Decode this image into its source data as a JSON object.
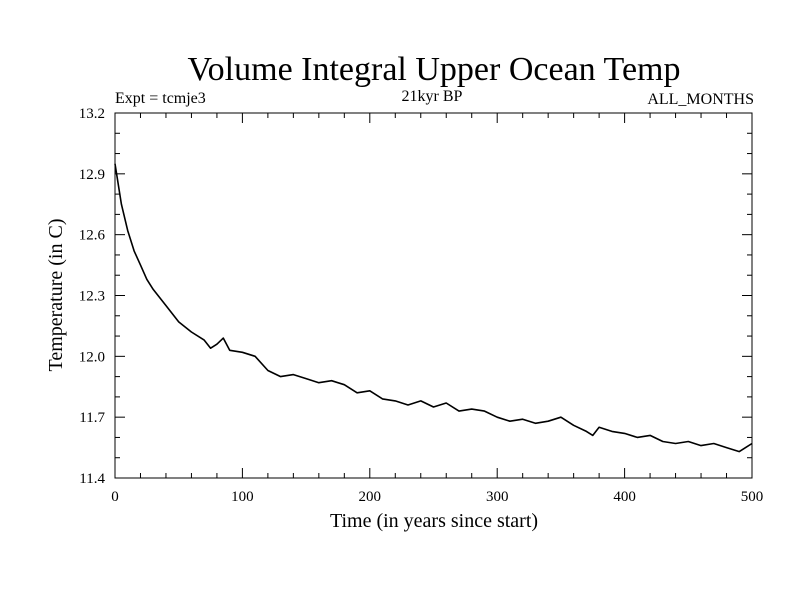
{
  "chart_data": {
    "type": "line",
    "title": "Volume Integral Upper Ocean Temp",
    "subtitle_left": "Expt = tcmje3",
    "subtitle_center": "21kyr BP",
    "subtitle_right": "ALL_MONTHS",
    "xlabel": "Time (in years since start)",
    "ylabel": "Temperature (in C)",
    "xlim": [
      0,
      500
    ],
    "ylim": [
      11.4,
      13.2
    ],
    "xticks": [
      0,
      100,
      200,
      300,
      400,
      500
    ],
    "xtick_labels": [
      "0",
      "100",
      "200",
      "300",
      "400",
      "500"
    ],
    "yticks": [
      11.4,
      11.7,
      12.0,
      12.3,
      12.6,
      12.9,
      13.2
    ],
    "ytick_labels": [
      "11.4",
      "11.7",
      "12.0",
      "12.3",
      "12.6",
      "12.9",
      "13.2"
    ],
    "grid": false,
    "series": [
      {
        "color": "#000000",
        "x": [
          0,
          5,
          10,
          15,
          20,
          25,
          30,
          40,
          50,
          60,
          70,
          75,
          80,
          85,
          90,
          100,
          110,
          120,
          130,
          140,
          150,
          160,
          170,
          180,
          190,
          200,
          210,
          220,
          230,
          240,
          250,
          260,
          270,
          280,
          290,
          300,
          310,
          320,
          330,
          340,
          350,
          360,
          370,
          375,
          380,
          390,
          400,
          410,
          420,
          430,
          440,
          450,
          460,
          470,
          480,
          490,
          495,
          500
        ],
        "y": [
          12.95,
          12.75,
          12.62,
          12.52,
          12.45,
          12.38,
          12.33,
          12.25,
          12.17,
          12.12,
          12.08,
          12.04,
          12.06,
          12.09,
          12.03,
          12.02,
          12.0,
          11.93,
          11.9,
          11.91,
          11.89,
          11.87,
          11.88,
          11.86,
          11.82,
          11.83,
          11.79,
          11.78,
          11.76,
          11.78,
          11.75,
          11.77,
          11.73,
          11.74,
          11.73,
          11.7,
          11.68,
          11.69,
          11.67,
          11.68,
          11.7,
          11.66,
          11.63,
          11.61,
          11.65,
          11.63,
          11.62,
          11.6,
          11.61,
          11.58,
          11.57,
          11.58,
          11.56,
          11.57,
          11.55,
          11.53,
          11.55,
          11.57
        ]
      }
    ]
  }
}
